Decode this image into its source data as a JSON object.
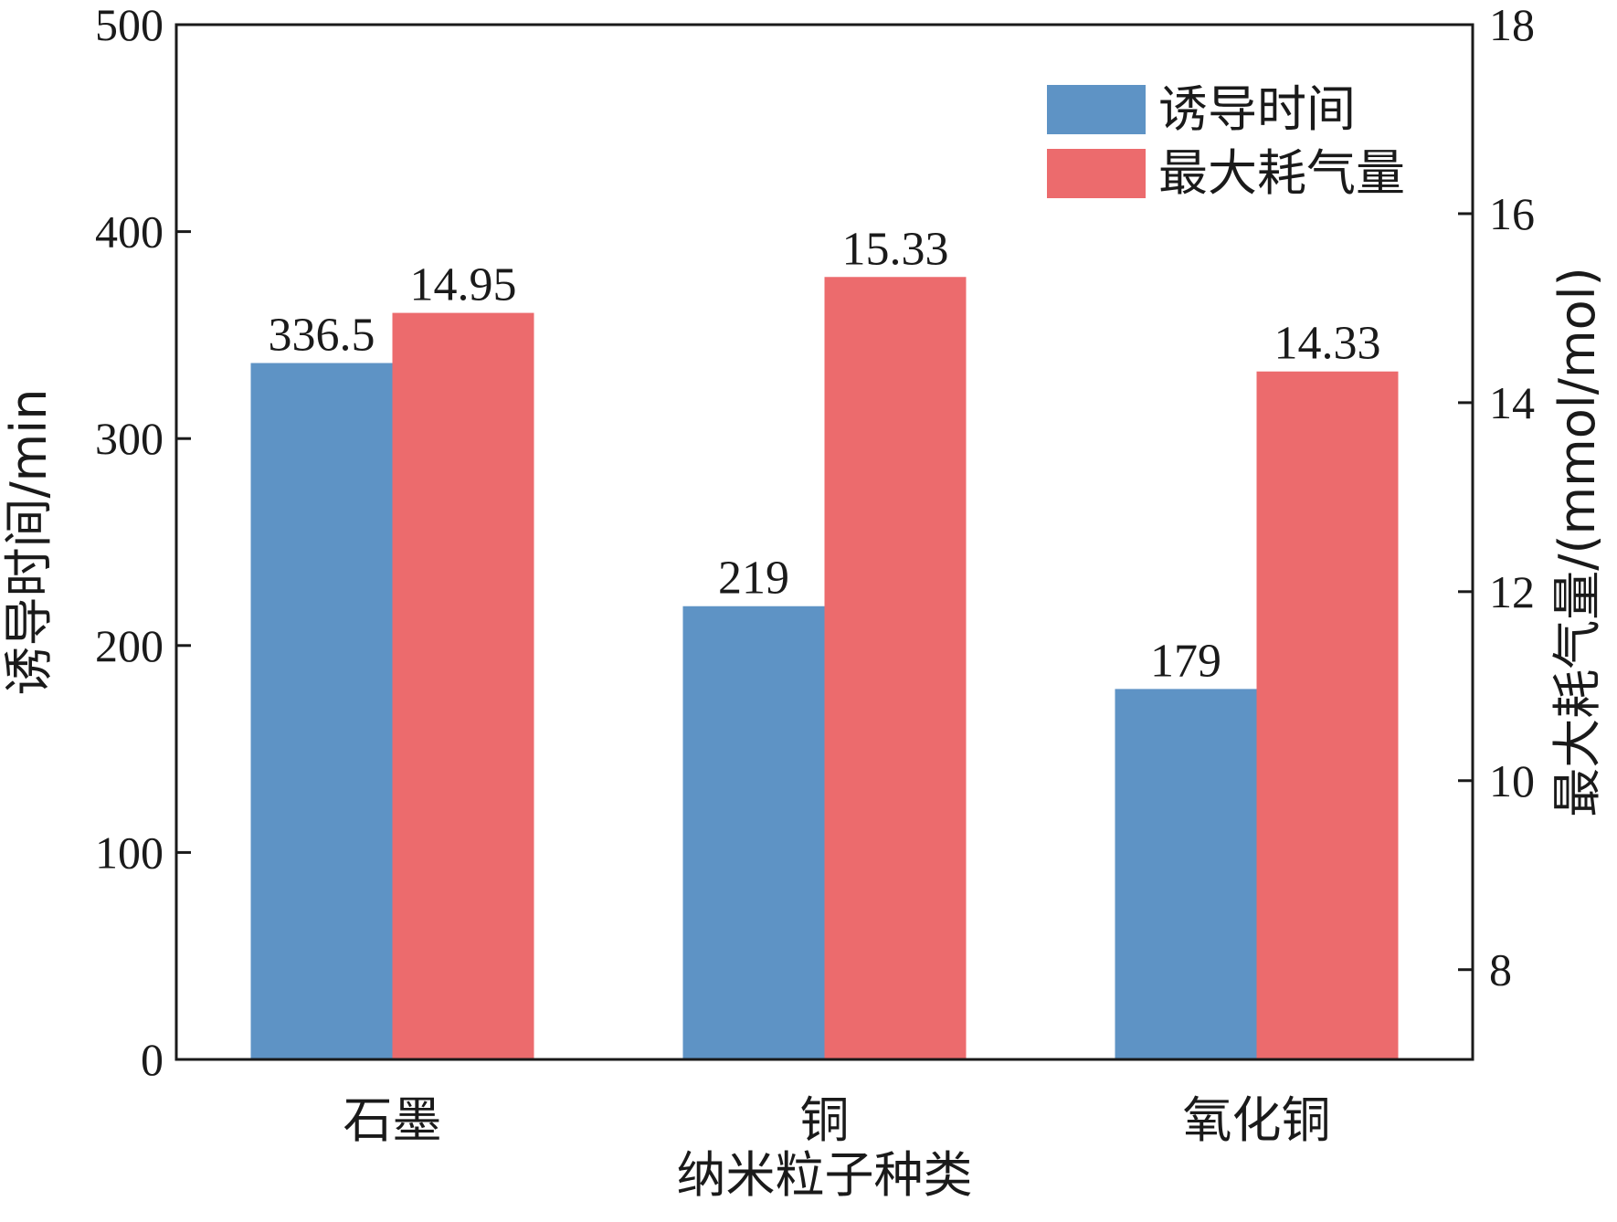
{
  "chart_data": {
    "type": "bar",
    "categories": [
      "石墨",
      "铜",
      "氧化铜"
    ],
    "series": [
      {
        "name": "诱导时间",
        "axis": "left",
        "values": [
          336.5,
          219,
          179
        ],
        "labels": [
          "336.5",
          "219",
          "179"
        ],
        "color": "#5e93c5"
      },
      {
        "name": "最大耗气量",
        "axis": "right",
        "values": [
          14.95,
          15.33,
          14.33
        ],
        "labels": [
          "14.95",
          "15.33",
          "14.33"
        ],
        "color": "#ec6b6d"
      }
    ],
    "xlabel": "纳米粒子种类",
    "ylabel_left": "诱导时间/min",
    "ylabel_right": "最大耗气量/(mmol/mol)",
    "ylim_left": [
      0,
      500
    ],
    "yticks_left": [
      "0",
      "100",
      "200",
      "300",
      "400",
      "500"
    ],
    "ylim_right": [
      7.05,
      18
    ],
    "yticks_right": [
      "8",
      "10",
      "12",
      "14",
      "16",
      "18"
    ],
    "legend_position": "top-right",
    "grid": false
  }
}
